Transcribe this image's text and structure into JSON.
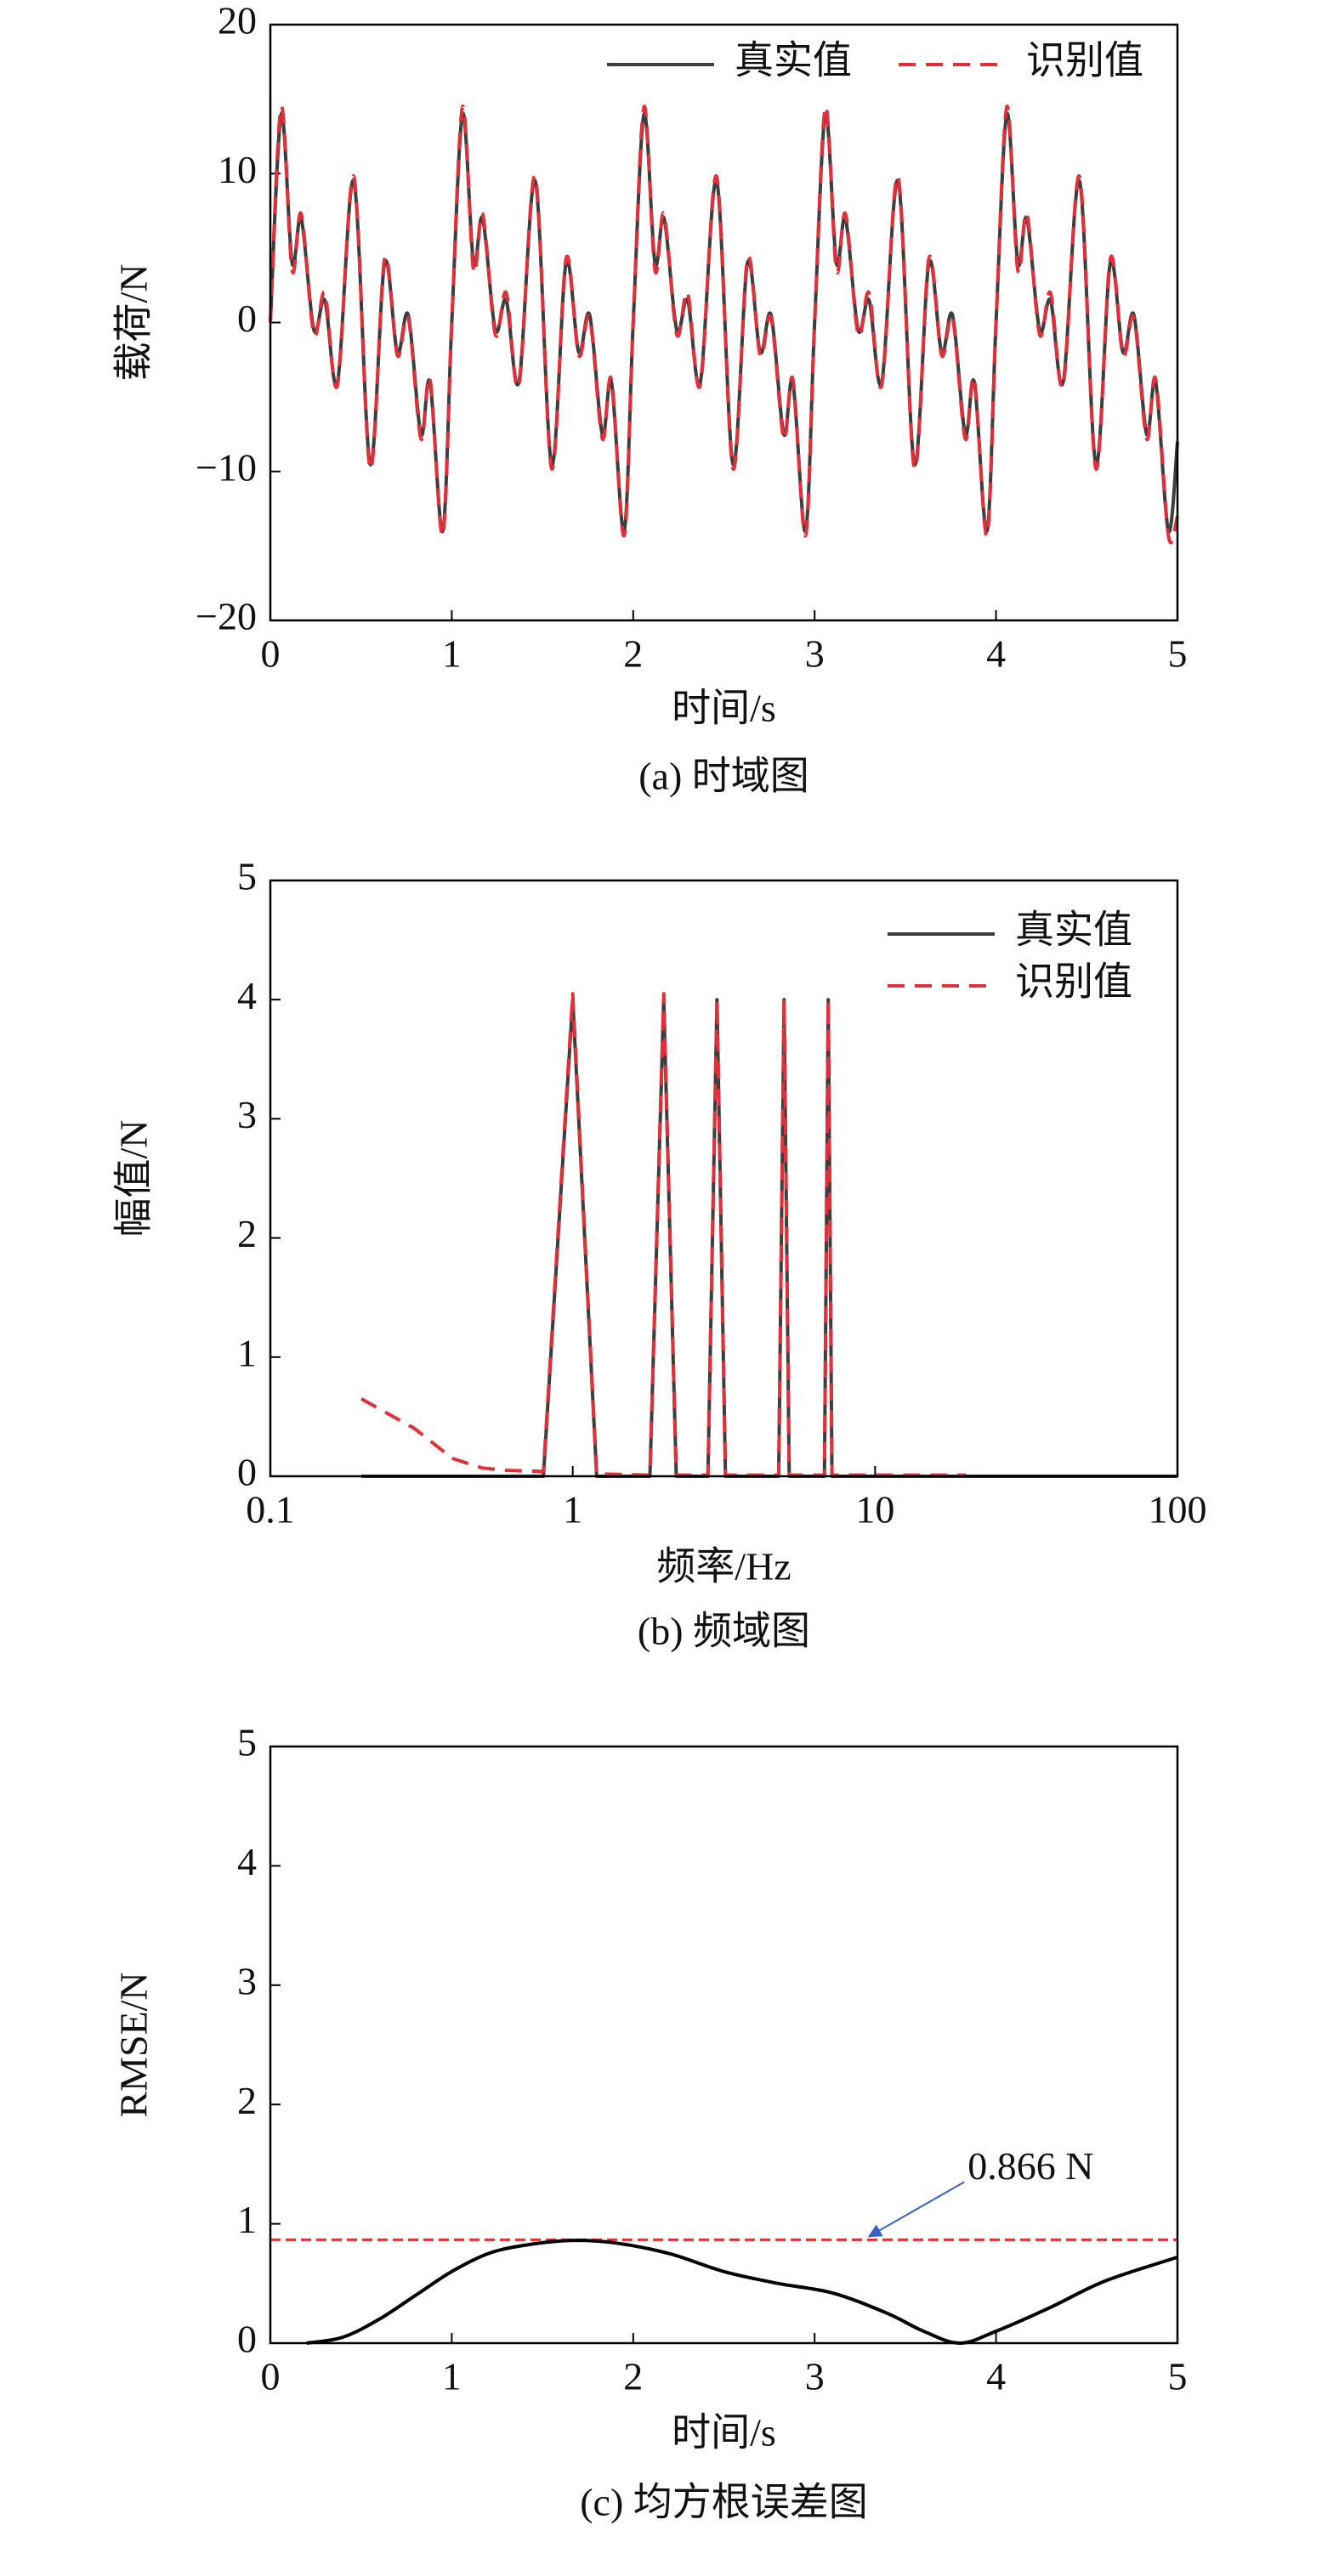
{
  "chart_data": [
    {
      "type": "line",
      "caption": "(a) 时域图",
      "xlabel": "时间/s",
      "ylabel": "载荷/N",
      "xlim": [
        0,
        5
      ],
      "xticks": [
        0,
        1,
        2,
        3,
        4,
        5
      ],
      "ylim": [
        -20,
        20
      ],
      "yticks": [
        {
          "value": -20,
          "label": "−20"
        },
        {
          "value": -10,
          "label": "−10"
        },
        0,
        10,
        20
      ],
      "legend": "upper right",
      "x": [
        0,
        0.06,
        0.12,
        0.17,
        0.24,
        0.3,
        0.37,
        0.46,
        0.55,
        0.63,
        0.7,
        0.76,
        0.83,
        0.88,
        0.95,
        1,
        1.06,
        1.12,
        1.17,
        1.24,
        1.3,
        1.37,
        1.46,
        1.55,
        1.63,
        1.7,
        1.76,
        1.83,
        1.88,
        1.95,
        2,
        2.06,
        2.12,
        2.17,
        2.24,
        2.3,
        2.37,
        2.46,
        2.55,
        2.63,
        2.7,
        2.76,
        2.83,
        2.88,
        2.95,
        3,
        3.06,
        3.12,
        3.17,
        3.24,
        3.3,
        3.37,
        3.46,
        3.55,
        3.63,
        3.7,
        3.76,
        3.83,
        3.88,
        3.95,
        4,
        4.06,
        4.12,
        4.17,
        4.24,
        4.3,
        4.37,
        4.46,
        4.55,
        4.63,
        4.7,
        4.76,
        4.83,
        4.88,
        4.95,
        5
      ],
      "series": [
        {
          "name": "真实值",
          "color": "#3d3d3d",
          "style": "solid",
          "values": [
            0,
            14,
            4,
            7,
            -0.5,
            1.5,
            -4,
            9.5,
            -9.5,
            4,
            -2,
            0.5,
            -7.5,
            -4,
            -14,
            0,
            14,
            4,
            7,
            -0.5,
            1.5,
            -4,
            9.5,
            -9.5,
            4,
            -2,
            0.5,
            -7.5,
            -4,
            -14,
            0,
            14,
            4,
            7,
            -0.5,
            1.5,
            -4,
            9.5,
            -9.5,
            4,
            -2,
            0.5,
            -7.5,
            -4,
            -14,
            0,
            14,
            4,
            7,
            -0.5,
            1.5,
            -4,
            9.5,
            -9.5,
            4,
            -2,
            0.5,
            -7.5,
            -4,
            -14,
            0,
            14,
            4,
            7,
            -0.5,
            1.5,
            -4,
            9.5,
            -9.5,
            4,
            -2,
            0.5,
            -7.5,
            -4,
            -14,
            -8
          ]
        },
        {
          "name": "识别值",
          "color": "#e0303a",
          "style": "dashed",
          "values": [
            0,
            14.5,
            3.5,
            7.3,
            -0.8,
            2,
            -4.2,
            9.8,
            -9.8,
            4.3,
            -2.2,
            0.3,
            -7.8,
            -3.8,
            -14.3,
            0,
            14.5,
            3.5,
            7.3,
            -0.8,
            2,
            -4.2,
            9.8,
            -9.8,
            4.3,
            -2.2,
            0.3,
            -7.8,
            -3.8,
            -14.3,
            0,
            14.5,
            3.5,
            7.3,
            -0.8,
            2,
            -4.2,
            9.8,
            -9.8,
            4.3,
            -2.2,
            0.3,
            -7.8,
            -3.8,
            -14.3,
            0,
            14.5,
            3.5,
            7.3,
            -0.8,
            2,
            -4.2,
            9.8,
            -9.8,
            4.3,
            -2.2,
            0.3,
            -7.8,
            -3.8,
            -14.3,
            0,
            14.5,
            3.5,
            7.3,
            -0.8,
            2,
            -4.2,
            9.8,
            -9.8,
            4.3,
            -2.2,
            0.3,
            -7.8,
            -3.8,
            -14.3,
            -13
          ]
        }
      ]
    },
    {
      "type": "line",
      "caption": "(b) 频域图",
      "xlabel": "频率/Hz",
      "ylabel": "幅值/N",
      "xscale": "log",
      "xlim": [
        0.1,
        100
      ],
      "xticks": [
        0.1,
        1,
        10,
        100
      ],
      "ylim": [
        0,
        5
      ],
      "yticks": [
        0,
        1,
        2,
        3,
        4,
        5
      ],
      "legend": "upper right",
      "x": [
        0.2,
        0.3,
        0.4,
        0.5,
        0.6,
        0.8,
        1,
        1.2,
        1.8,
        2,
        2.2,
        2.8,
        3,
        3.2,
        4.8,
        5,
        5.2,
        6.8,
        7,
        7.2,
        10,
        20,
        100
      ],
      "series": [
        {
          "name": "真实值",
          "color": "#3d3d3d",
          "style": "solid",
          "values": [
            0,
            0,
            0,
            0,
            0,
            0,
            4,
            0,
            0,
            4,
            0,
            0,
            4,
            0,
            0,
            4,
            0,
            0,
            4,
            0,
            0,
            0,
            0
          ]
        },
        {
          "name": "识别值",
          "color": "#e0303a",
          "style": "dashed",
          "values": [
            0.65,
            0.4,
            0.15,
            0.07,
            0.05,
            0.04,
            4.05,
            0.02,
            0.01,
            4.05,
            0.01,
            0.01,
            4,
            0.01,
            0.01,
            4,
            0.01,
            0.01,
            4,
            0.01,
            0.01,
            0.01,
            null
          ]
        }
      ]
    },
    {
      "type": "line",
      "caption": "(c) 均方根误差图",
      "xlabel": "时间/s",
      "ylabel": "RMSE/N",
      "xlim": [
        0,
        5
      ],
      "xticks": [
        0,
        1,
        2,
        3,
        4,
        5
      ],
      "ylim": [
        0,
        5
      ],
      "yticks": [
        0,
        1,
        2,
        3,
        4,
        5
      ],
      "reference_line": {
        "value": 0.866,
        "label": "0.866 N",
        "color": "#e0303a"
      },
      "x": [
        0.2,
        0.4,
        0.6,
        0.8,
        1,
        1.2,
        1.4,
        1.65,
        1.9,
        2.2,
        2.5,
        2.8,
        3.1,
        3.4,
        3.6,
        3.8,
        4,
        4.3,
        4.6,
        5
      ],
      "series": [
        {
          "color": "#000000",
          "style": "solid",
          "values": [
            0,
            0.05,
            0.2,
            0.4,
            0.6,
            0.75,
            0.82,
            0.86,
            0.84,
            0.75,
            0.6,
            0.5,
            0.42,
            0.25,
            0.1,
            0,
            0.1,
            0.3,
            0.52,
            0.72
          ]
        }
      ]
    }
  ]
}
